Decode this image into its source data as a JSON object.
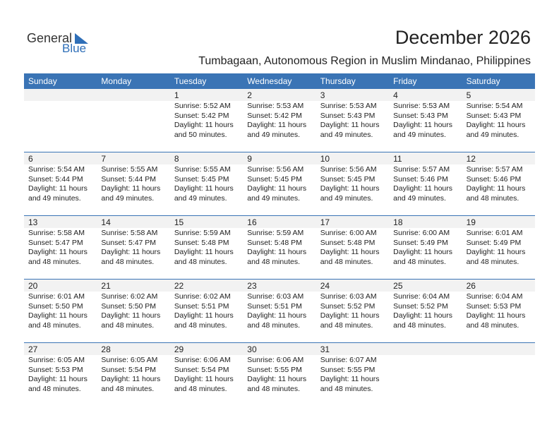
{
  "logo": {
    "word1": "General",
    "word2": "Blue"
  },
  "header": {
    "title": "December 2026",
    "subtitle": "Tumbagaan, Autonomous Region in Muslim Mindanao, Philippines"
  },
  "weekdays": [
    "Sunday",
    "Monday",
    "Tuesday",
    "Wednesday",
    "Thursday",
    "Friday",
    "Saturday"
  ],
  "weeks": [
    [
      null,
      null,
      {
        "day": 1,
        "lines": [
          "Sunrise: 5:52 AM",
          "Sunset: 5:42 PM",
          "Daylight: 11 hours",
          "and 50 minutes."
        ]
      },
      {
        "day": 2,
        "lines": [
          "Sunrise: 5:53 AM",
          "Sunset: 5:42 PM",
          "Daylight: 11 hours",
          "and 49 minutes."
        ]
      },
      {
        "day": 3,
        "lines": [
          "Sunrise: 5:53 AM",
          "Sunset: 5:43 PM",
          "Daylight: 11 hours",
          "and 49 minutes."
        ]
      },
      {
        "day": 4,
        "lines": [
          "Sunrise: 5:53 AM",
          "Sunset: 5:43 PM",
          "Daylight: 11 hours",
          "and 49 minutes."
        ]
      },
      {
        "day": 5,
        "lines": [
          "Sunrise: 5:54 AM",
          "Sunset: 5:43 PM",
          "Daylight: 11 hours",
          "and 49 minutes."
        ]
      }
    ],
    [
      {
        "day": 6,
        "lines": [
          "Sunrise: 5:54 AM",
          "Sunset: 5:44 PM",
          "Daylight: 11 hours",
          "and 49 minutes."
        ]
      },
      {
        "day": 7,
        "lines": [
          "Sunrise: 5:55 AM",
          "Sunset: 5:44 PM",
          "Daylight: 11 hours",
          "and 49 minutes."
        ]
      },
      {
        "day": 8,
        "lines": [
          "Sunrise: 5:55 AM",
          "Sunset: 5:45 PM",
          "Daylight: 11 hours",
          "and 49 minutes."
        ]
      },
      {
        "day": 9,
        "lines": [
          "Sunrise: 5:56 AM",
          "Sunset: 5:45 PM",
          "Daylight: 11 hours",
          "and 49 minutes."
        ]
      },
      {
        "day": 10,
        "lines": [
          "Sunrise: 5:56 AM",
          "Sunset: 5:45 PM",
          "Daylight: 11 hours",
          "and 49 minutes."
        ]
      },
      {
        "day": 11,
        "lines": [
          "Sunrise: 5:57 AM",
          "Sunset: 5:46 PM",
          "Daylight: 11 hours",
          "and 49 minutes."
        ]
      },
      {
        "day": 12,
        "lines": [
          "Sunrise: 5:57 AM",
          "Sunset: 5:46 PM",
          "Daylight: 11 hours",
          "and 48 minutes."
        ]
      }
    ],
    [
      {
        "day": 13,
        "lines": [
          "Sunrise: 5:58 AM",
          "Sunset: 5:47 PM",
          "Daylight: 11 hours",
          "and 48 minutes."
        ]
      },
      {
        "day": 14,
        "lines": [
          "Sunrise: 5:58 AM",
          "Sunset: 5:47 PM",
          "Daylight: 11 hours",
          "and 48 minutes."
        ]
      },
      {
        "day": 15,
        "lines": [
          "Sunrise: 5:59 AM",
          "Sunset: 5:48 PM",
          "Daylight: 11 hours",
          "and 48 minutes."
        ]
      },
      {
        "day": 16,
        "lines": [
          "Sunrise: 5:59 AM",
          "Sunset: 5:48 PM",
          "Daylight: 11 hours",
          "and 48 minutes."
        ]
      },
      {
        "day": 17,
        "lines": [
          "Sunrise: 6:00 AM",
          "Sunset: 5:48 PM",
          "Daylight: 11 hours",
          "and 48 minutes."
        ]
      },
      {
        "day": 18,
        "lines": [
          "Sunrise: 6:00 AM",
          "Sunset: 5:49 PM",
          "Daylight: 11 hours",
          "and 48 minutes."
        ]
      },
      {
        "day": 19,
        "lines": [
          "Sunrise: 6:01 AM",
          "Sunset: 5:49 PM",
          "Daylight: 11 hours",
          "and 48 minutes."
        ]
      }
    ],
    [
      {
        "day": 20,
        "lines": [
          "Sunrise: 6:01 AM",
          "Sunset: 5:50 PM",
          "Daylight: 11 hours",
          "and 48 minutes."
        ]
      },
      {
        "day": 21,
        "lines": [
          "Sunrise: 6:02 AM",
          "Sunset: 5:50 PM",
          "Daylight: 11 hours",
          "and 48 minutes."
        ]
      },
      {
        "day": 22,
        "lines": [
          "Sunrise: 6:02 AM",
          "Sunset: 5:51 PM",
          "Daylight: 11 hours",
          "and 48 minutes."
        ]
      },
      {
        "day": 23,
        "lines": [
          "Sunrise: 6:03 AM",
          "Sunset: 5:51 PM",
          "Daylight: 11 hours",
          "and 48 minutes."
        ]
      },
      {
        "day": 24,
        "lines": [
          "Sunrise: 6:03 AM",
          "Sunset: 5:52 PM",
          "Daylight: 11 hours",
          "and 48 minutes."
        ]
      },
      {
        "day": 25,
        "lines": [
          "Sunrise: 6:04 AM",
          "Sunset: 5:52 PM",
          "Daylight: 11 hours",
          "and 48 minutes."
        ]
      },
      {
        "day": 26,
        "lines": [
          "Sunrise: 6:04 AM",
          "Sunset: 5:53 PM",
          "Daylight: 11 hours",
          "and 48 minutes."
        ]
      }
    ],
    [
      {
        "day": 27,
        "lines": [
          "Sunrise: 6:05 AM",
          "Sunset: 5:53 PM",
          "Daylight: 11 hours",
          "and 48 minutes."
        ]
      },
      {
        "day": 28,
        "lines": [
          "Sunrise: 6:05 AM",
          "Sunset: 5:54 PM",
          "Daylight: 11 hours",
          "and 48 minutes."
        ]
      },
      {
        "day": 29,
        "lines": [
          "Sunrise: 6:06 AM",
          "Sunset: 5:54 PM",
          "Daylight: 11 hours",
          "and 48 minutes."
        ]
      },
      {
        "day": 30,
        "lines": [
          "Sunrise: 6:06 AM",
          "Sunset: 5:55 PM",
          "Daylight: 11 hours",
          "and 48 minutes."
        ]
      },
      {
        "day": 31,
        "lines": [
          "Sunrise: 6:07 AM",
          "Sunset: 5:55 PM",
          "Daylight: 11 hours",
          "and 48 minutes."
        ]
      },
      null,
      null
    ]
  ]
}
